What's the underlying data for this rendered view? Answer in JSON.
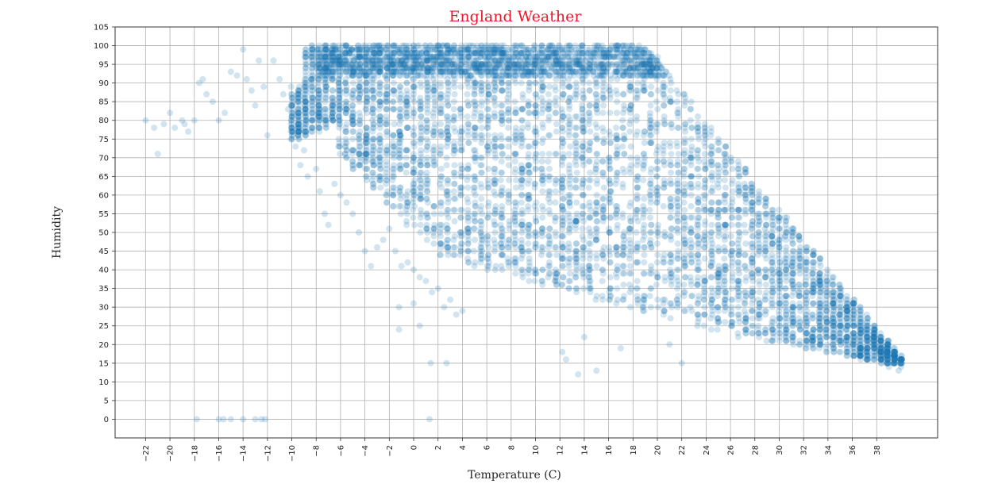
{
  "colors": {
    "title": "#e8192c",
    "point": "#1f77b4",
    "grid": "#b0b0b0",
    "frame": "#333333"
  },
  "chart_data": {
    "type": "scatter",
    "title": "England Weather",
    "xlabel": "Temperature (C)",
    "ylabel": "Humidity",
    "xlim": [
      -24.5,
      43
    ],
    "ylim": [
      -5,
      105
    ],
    "grid": true,
    "point_alpha": 0.2,
    "xticks": [
      -22,
      -20,
      -18,
      -16,
      -14,
      -12,
      -10,
      -8,
      -6,
      -4,
      -2,
      0,
      2,
      4,
      6,
      8,
      10,
      12,
      14,
      16,
      18,
      20,
      22,
      24,
      26,
      28,
      30,
      32,
      34,
      36,
      38
    ],
    "xtick_labels": [
      "−22",
      "−20",
      "−18",
      "−16",
      "−14",
      "−12",
      "−10",
      "−8",
      "−6",
      "−4",
      "−2",
      "0",
      "2",
      "4",
      "6",
      "8",
      "10",
      "12",
      "14",
      "16",
      "18",
      "20",
      "22",
      "24",
      "26",
      "28",
      "30",
      "32",
      "34",
      "36",
      "38"
    ],
    "yticks": [
      0,
      5,
      10,
      15,
      20,
      25,
      30,
      35,
      40,
      45,
      50,
      55,
      60,
      65,
      70,
      75,
      80,
      85,
      90,
      95,
      100,
      105
    ],
    "ytick_labels": [
      "0",
      "5",
      "10",
      "15",
      "20",
      "25",
      "30",
      "35",
      "40",
      "45",
      "50",
      "55",
      "60",
      "65",
      "70",
      "75",
      "80",
      "85",
      "90",
      "95",
      "100",
      "105"
    ],
    "point_region": {
      "description_ranges": [
        {
          "x_range": [
            -9,
            19
          ],
          "y_range": [
            70,
            100
          ]
        },
        {
          "x_range": [
            -2,
            22
          ],
          "y_range": [
            40,
            100
          ]
        },
        {
          "x_range": [
            8,
            34
          ],
          "y_range": [
            20,
            90
          ]
        },
        {
          "x_range": [
            28,
            40
          ],
          "y_range": [
            13,
            60
          ]
        }
      ]
    },
    "series": [
      {
        "x": [
          -22,
          -21.3,
          -21,
          -20.5,
          -20,
          -19.6,
          -19,
          -18.8,
          -18.5,
          -18,
          -17.6,
          -17.3,
          -17,
          -16.5,
          -16,
          -15.5,
          -15,
          -14.5,
          -14,
          -13.7,
          -13.3,
          -13,
          -12.7,
          -12.3,
          -12,
          -11.5,
          -11,
          -10.7,
          -10.3,
          -10,
          -9.7,
          -9.3,
          -9,
          -8.7,
          -8.3,
          -8,
          -7.7,
          -7.3,
          -7,
          -6.5,
          -6,
          -5.5,
          -5,
          -4.5,
          -4,
          -3.5,
          -3,
          -2.5,
          -2,
          -1.5,
          -1,
          -0.5,
          0,
          0.5,
          1,
          1.5,
          2,
          2.5,
          3,
          3.5,
          4,
          -1.2,
          0,
          0.5,
          1.4,
          2.7,
          -1.2,
          1.3,
          -17.8,
          -16,
          -15.6,
          -15,
          -14,
          -13,
          -12.5,
          -12.2,
          14,
          13.5,
          12.5,
          12.2,
          15,
          17,
          21,
          22,
          36,
          37,
          37.7,
          38.5,
          39,
          39.4,
          39.8,
          38,
          37.3,
          36.5,
          35.5,
          35,
          34.4
        ],
        "y": [
          80,
          78,
          71,
          79,
          82,
          78,
          80,
          79,
          77,
          80,
          90,
          91,
          87,
          85,
          80,
          82,
          93,
          92,
          99,
          91,
          88,
          84,
          96,
          89,
          76,
          96,
          91,
          87,
          83,
          78,
          73,
          68,
          72,
          65,
          80,
          67,
          61,
          55,
          52,
          63,
          60,
          58,
          55,
          50,
          45,
          41,
          46,
          48,
          51,
          45,
          41,
          42,
          40,
          38,
          37,
          34,
          35,
          30,
          32,
          28,
          29,
          30,
          31,
          25,
          15,
          15,
          24,
          0,
          0,
          0,
          0,
          0,
          0,
          0,
          0,
          0,
          22,
          12,
          16,
          18,
          13,
          19,
          20,
          15,
          20,
          19,
          17,
          16,
          14,
          15,
          13,
          18,
          21,
          25,
          27,
          31,
          33
        ]
      }
    ]
  }
}
